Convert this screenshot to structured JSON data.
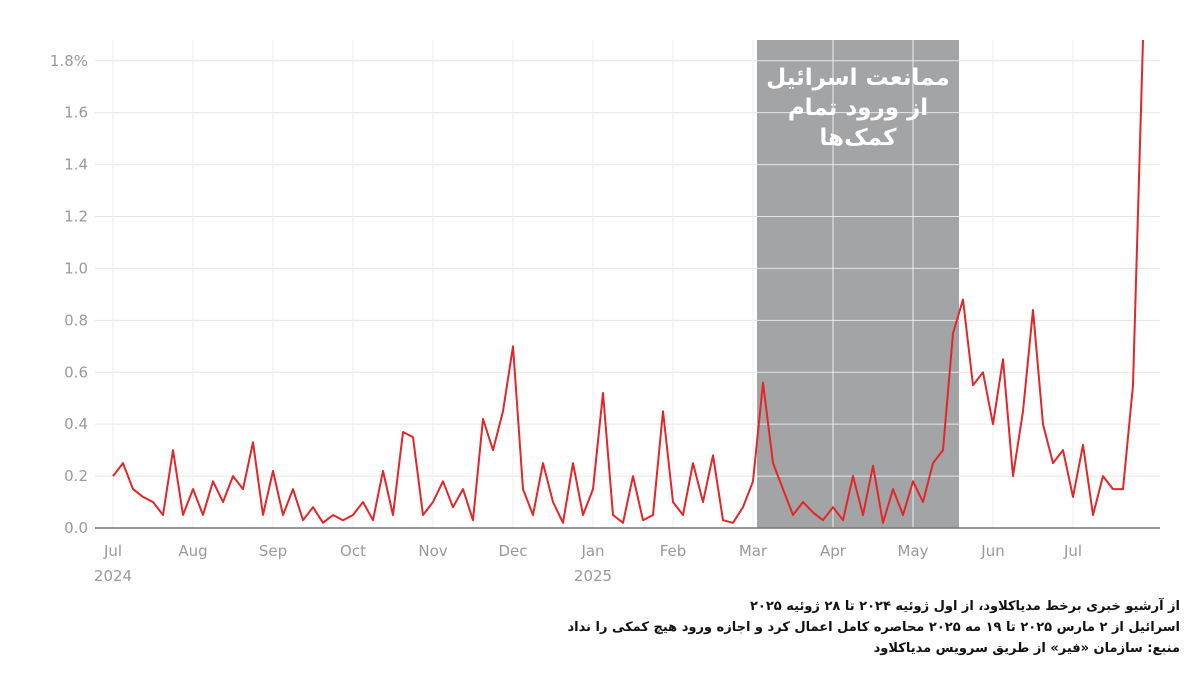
{
  "chart_data": {
    "type": "line",
    "color": "#e3262a",
    "grid": true,
    "ylim": [
      0,
      1.88
    ],
    "yticks": [
      {
        "value": 0,
        "label": "0.0"
      },
      0.2,
      0.4,
      0.6,
      0.8,
      {
        "value": 1,
        "label": "1.0"
      },
      1.2,
      1.4,
      1.6,
      {
        "value": 1.8,
        "label": "1.8%"
      }
    ],
    "categories": [
      "Jul",
      null,
      null,
      null,
      null,
      null,
      null,
      null,
      "Aug",
      null,
      null,
      null,
      null,
      null,
      null,
      null,
      "Sep",
      null,
      null,
      null,
      null,
      null,
      null,
      null,
      "Oct",
      null,
      null,
      null,
      null,
      null,
      null,
      null,
      "Nov",
      null,
      null,
      null,
      null,
      null,
      null,
      null,
      "Dec",
      null,
      null,
      null,
      null,
      null,
      null,
      null,
      "Jan",
      null,
      null,
      null,
      null,
      null,
      null,
      null,
      "Feb",
      null,
      null,
      null,
      null,
      null,
      null,
      null,
      "Mar",
      null,
      null,
      null,
      null,
      null,
      null,
      null,
      "Apr",
      null,
      null,
      null,
      null,
      null,
      null,
      null,
      "May",
      null,
      null,
      null,
      null,
      null,
      null,
      null,
      "Jun",
      null,
      null,
      null,
      null,
      null,
      null,
      null,
      "Jul",
      null,
      null,
      null,
      null,
      null,
      null,
      null
    ],
    "year_labels": [
      {
        "value": 0,
        "label": "2024"
      },
      {
        "value": 48,
        "label": "2025"
      }
    ],
    "values": [
      0.2,
      0.25,
      0.15,
      0.12,
      0.1,
      0.05,
      0.3,
      0.05,
      0.15,
      0.05,
      0.18,
      0.1,
      0.2,
      0.15,
      0.33,
      0.05,
      0.22,
      0.05,
      0.15,
      0.03,
      0.08,
      0.02,
      0.05,
      0.03,
      0.05,
      0.1,
      0.03,
      0.22,
      0.05,
      0.37,
      0.35,
      0.05,
      0.1,
      0.18,
      0.08,
      0.15,
      0.03,
      0.42,
      0.3,
      0.45,
      0.7,
      0.15,
      0.05,
      0.25,
      0.1,
      0.02,
      0.25,
      0.05,
      0.15,
      0.52,
      0.05,
      0.02,
      0.2,
      0.03,
      0.05,
      0.45,
      0.1,
      0.05,
      0.25,
      0.1,
      0.28,
      0.03,
      0.02,
      0.08,
      0.18,
      0.56,
      0.25,
      0.15,
      0.05,
      0.1,
      0.06,
      0.03,
      0.08,
      0.03,
      0.2,
      0.05,
      0.24,
      0.02,
      0.15,
      0.05,
      0.18,
      0.1,
      0.25,
      0.3,
      0.75,
      0.88,
      0.55,
      0.6,
      0.4,
      0.65,
      0.2,
      0.45,
      0.84,
      0.4,
      0.25,
      0.3,
      0.12,
      0.32,
      0.05,
      0.2,
      0.15,
      0.15,
      0.55,
      1.88
    ],
    "shaded_range": [
      64.4,
      84.6
    ],
    "shaded_label": [
      "ممانعت اسرائیل",
      "از ورود تمام",
      "کمک‌ها"
    ],
    "notes": [
      "از آرشیو خبری برخط مدیاکلاود، از اول ژوئیه ۲۰۲۴ تا ۲۸ ژوئیه ۲۰۲۵",
      "اسرائیل از ۲ مارس ۲۰۲۵ تا ۱۹ مه ۲۰۲۵ محاصره کامل اعمال کرد و اجازه ورود هیچ کمکی را نداد",
      "منبع: سازمان «فیر» از طریق سرویس مدیاکلاود"
    ]
  }
}
